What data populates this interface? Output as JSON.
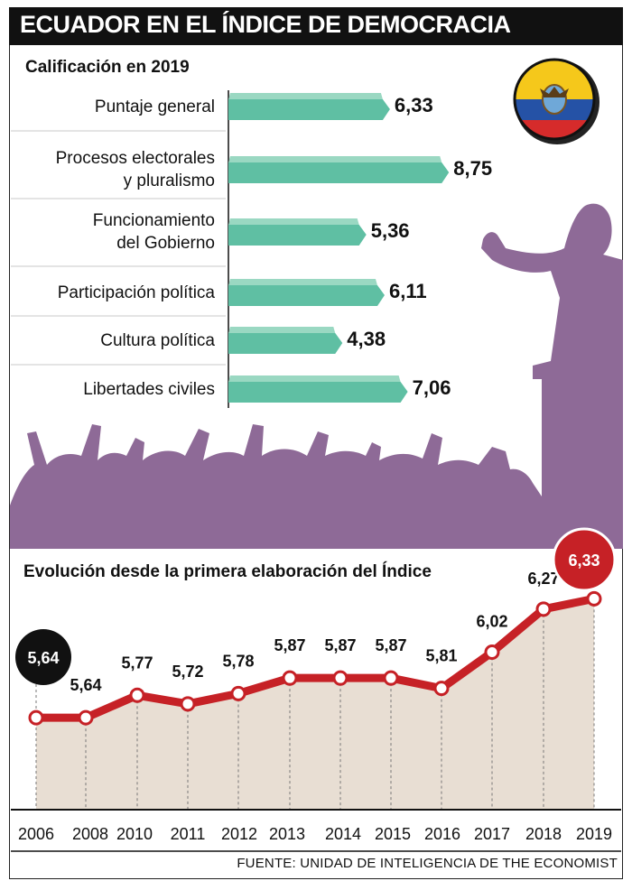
{
  "title": "ECUADOR EN EL ÍNDICE DE DEMOCRACIA",
  "colors": {
    "bar_face": "#5fbfa3",
    "bar_top": "#9ad8c2",
    "silhouette": "#8e6a97",
    "line": "#c62126",
    "area": "#e8ded3",
    "bubble_start": "#111111",
    "bubble_end": "#c62126"
  },
  "source": "FUENTE: UNIDAD DE INTELIGENCIA DE THE ECONOMIST",
  "chart_data": [
    {
      "type": "bar",
      "orientation": "horizontal",
      "title": "Calificación en 2019",
      "categories": [
        [
          "Puntaje general"
        ],
        [
          "Procesos electorales",
          "y pluralismo"
        ],
        [
          "Funcionamiento",
          "del Gobierno"
        ],
        [
          "Participación política"
        ],
        [
          "Cultura política"
        ],
        [
          "Libertades civiles"
        ]
      ],
      "values": [
        6.33,
        8.75,
        5.36,
        6.11,
        4.38,
        7.06
      ],
      "value_labels": [
        "6,33",
        "8,75",
        "5,36",
        "6,11",
        "4,38",
        "7,06"
      ],
      "xlim": [
        0,
        10
      ]
    },
    {
      "type": "line",
      "title": "Evolución desde la primera elaboración del Índice",
      "x": [
        "2006",
        "2008",
        "2010",
        "2011",
        "2012",
        "2013",
        "2014",
        "2015",
        "2016",
        "2017",
        "2018",
        "2019"
      ],
      "values": [
        5.64,
        5.64,
        5.77,
        5.72,
        5.78,
        5.87,
        5.87,
        5.87,
        5.81,
        6.02,
        6.27,
        6.33
      ],
      "value_labels": [
        "5,64",
        "5,64",
        "5,77",
        "5,72",
        "5,78",
        "5,87",
        "5,87",
        "5,87",
        "5,81",
        "6,02",
        "6,27",
        "6,33"
      ],
      "ylim": [
        5.3,
        6.4
      ],
      "highlight_first": "5,64",
      "highlight_last": "6,33"
    }
  ]
}
